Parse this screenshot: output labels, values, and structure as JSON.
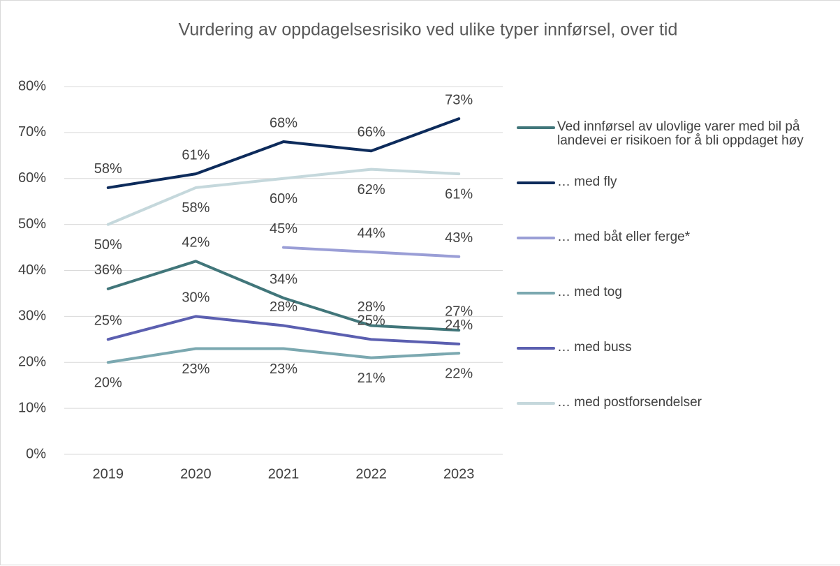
{
  "chart_data": {
    "type": "line",
    "title": "Vurdering av oppdagelsesrisiko ved ulike typer innførsel, over tid",
    "categories": [
      "2019",
      "2020",
      "2021",
      "2022",
      "2023"
    ],
    "series": [
      {
        "name": "Ved innførsel av ulovlige varer med bil på landevei er risikoen for å bli oppdaget høy",
        "color": "#41767a",
        "values": [
          36,
          42,
          34,
          28,
          27
        ],
        "value_labels": [
          "36%",
          "42%",
          "34%",
          "28%",
          "27%"
        ]
      },
      {
        "name": "… med fly",
        "color": "#0d2b5b",
        "values": [
          58,
          61,
          68,
          66,
          73
        ],
        "value_labels": [
          "58%",
          "61%",
          "68%",
          "66%",
          "73%"
        ]
      },
      {
        "name": "… med båt eller ferge*",
        "color": "#9a9ed6",
        "values": [
          null,
          null,
          45,
          44,
          43
        ],
        "value_labels": [
          null,
          null,
          "45%",
          "44%",
          "43%"
        ]
      },
      {
        "name": "… med tog",
        "color": "#7ba8b0",
        "values": [
          20,
          23,
          23,
          21,
          22
        ],
        "value_labels": [
          "20%",
          "23%",
          "23%",
          "21%",
          "22%"
        ]
      },
      {
        "name": "… med buss",
        "color": "#5b5fb0",
        "values": [
          25,
          30,
          28,
          25,
          24
        ],
        "value_labels": [
          "25%",
          "30%",
          "28%",
          "25%",
          "24%"
        ]
      },
      {
        "name": "… med postforsendelser",
        "color": "#c5d8dc",
        "values": [
          50,
          58,
          60,
          62,
          61
        ],
        "value_labels": [
          "50%",
          "58%",
          "60%",
          "62%",
          "61%"
        ]
      }
    ],
    "ylim": [
      0,
      80
    ],
    "yticks": [
      {
        "value": 0,
        "label": "0%"
      },
      {
        "value": 10,
        "label": "10%"
      },
      {
        "value": 20,
        "label": "20%"
      },
      {
        "value": 30,
        "label": "30%"
      },
      {
        "value": 40,
        "label": "40%"
      },
      {
        "value": 50,
        "label": "50%"
      },
      {
        "value": 60,
        "label": "60%"
      },
      {
        "value": 70,
        "label": "70%"
      },
      {
        "value": 80,
        "label": "80%"
      }
    ],
    "grid": true,
    "legend": "right"
  }
}
